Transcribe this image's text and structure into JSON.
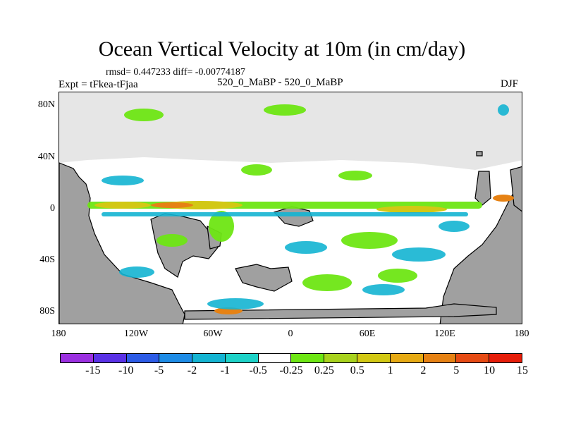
{
  "title": "Ocean Vertical Velocity at 10m (in cm/day)",
  "stats": "rmsd= 0.447233 diff= -0.00774187",
  "expt": "Expt = tFkea-tFjaa",
  "center_label": "520_0_MaBP - 520_0_MaBP",
  "season": "DJF",
  "map": {
    "y_ticks": [
      "80N",
      "40N",
      "0",
      "40S",
      "80S"
    ],
    "x_ticks": [
      "180",
      "120W",
      "60W",
      "0",
      "60E",
      "120E",
      "180"
    ],
    "land_color": "#a0a0a0",
    "background_color": "#e6e6e6"
  },
  "colorbar": {
    "colors": [
      "#9b30e0",
      "#5a32e6",
      "#2d5ce6",
      "#1e8ce6",
      "#14b4d2",
      "#1ed2c8",
      "#ffffff",
      "#6ee614",
      "#a8d21e",
      "#d2c814",
      "#e6aa14",
      "#e68214",
      "#e64b14",
      "#e61e0a"
    ],
    "labels": [
      "-15",
      "-10",
      "-5",
      "-2",
      "-1",
      "-0.5",
      "-0.25",
      "0.25",
      "0.5",
      "1",
      "2",
      "5",
      "10",
      "15"
    ]
  }
}
